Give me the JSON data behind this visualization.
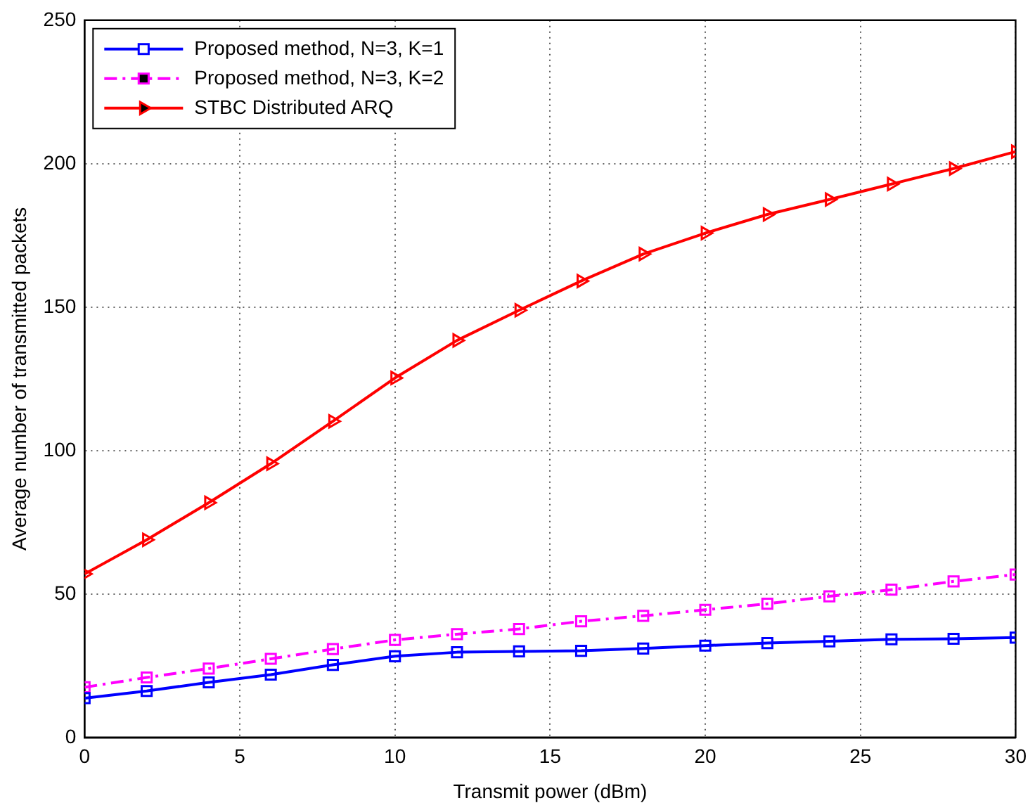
{
  "chart_data": {
    "type": "line",
    "xlabel": "Transmit power (dBm)",
    "ylabel": "Average number of transmitted packets",
    "x": [
      0,
      2,
      4,
      6,
      8,
      10,
      12,
      14,
      16,
      18,
      20,
      22,
      24,
      26,
      28,
      30
    ],
    "series": [
      {
        "name": "Proposed method, N=3, K=1",
        "color": "#0000ff",
        "marker": "square",
        "line_style": "solid",
        "values": [
          13.7,
          16.2,
          19.2,
          21.9,
          25.3,
          28.3,
          29.7,
          30,
          30.2,
          31,
          32,
          32.9,
          33.5,
          34.2,
          34.4,
          34.8
        ]
      },
      {
        "name": "Proposed method, N=3, K=2",
        "color": "#ff00ff",
        "marker": "square",
        "line_style": "dashed",
        "values": [
          17.5,
          20.9,
          24,
          27.4,
          30.8,
          34,
          36,
          37.8,
          40.5,
          42.4,
          44.5,
          46.6,
          49.2,
          51.5,
          54.4,
          56.8
        ]
      },
      {
        "name": "STBC Distributed ARQ",
        "color": "#ff0000",
        "marker": "triangle",
        "line_style": "solid",
        "values": [
          57,
          68.9,
          81.8,
          95.4,
          110.2,
          125.3,
          138.4,
          148.9,
          159.1,
          168.5,
          175.8,
          182.3,
          187.5,
          192.9,
          198.3,
          204.2
        ]
      }
    ],
    "xlim": [
      0,
      30
    ],
    "xticks": [
      0,
      5,
      10,
      15,
      20,
      25,
      30
    ],
    "ylim": [
      0,
      250
    ],
    "yticks": [
      0,
      50,
      100,
      150,
      200,
      250
    ],
    "grid": true,
    "legend": "top left"
  }
}
